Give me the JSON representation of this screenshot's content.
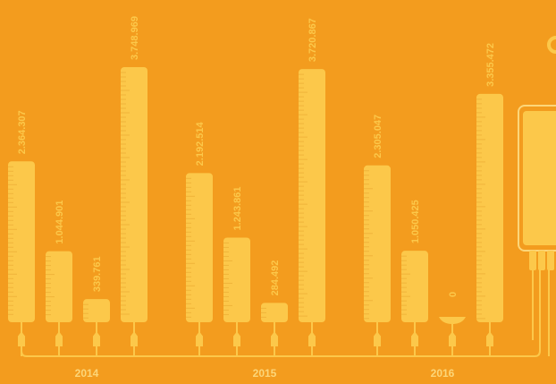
{
  "chart_data": {
    "type": "bar",
    "categories": [
      "2014",
      "2015",
      "2016"
    ],
    "color": "#fcc84a",
    "series": [
      {
        "values": [
          2364307,
          2192514,
          2305047
        ],
        "value_labels": [
          "2.364.307",
          "2.192.514",
          "2.305.047"
        ]
      },
      {
        "values": [
          1044901,
          1243861,
          1050425
        ],
        "value_labels": [
          "1.044.901",
          "1.243.861",
          "1.050.425"
        ]
      },
      {
        "values": [
          339761,
          284492,
          0
        ],
        "value_labels": [
          "339.761",
          "284.492",
          "0"
        ]
      },
      {
        "values": [
          3748969,
          3720867,
          3355472
        ],
        "value_labels": [
          "3.748.969",
          "3.720.867",
          "3.355.472"
        ]
      }
    ]
  }
}
